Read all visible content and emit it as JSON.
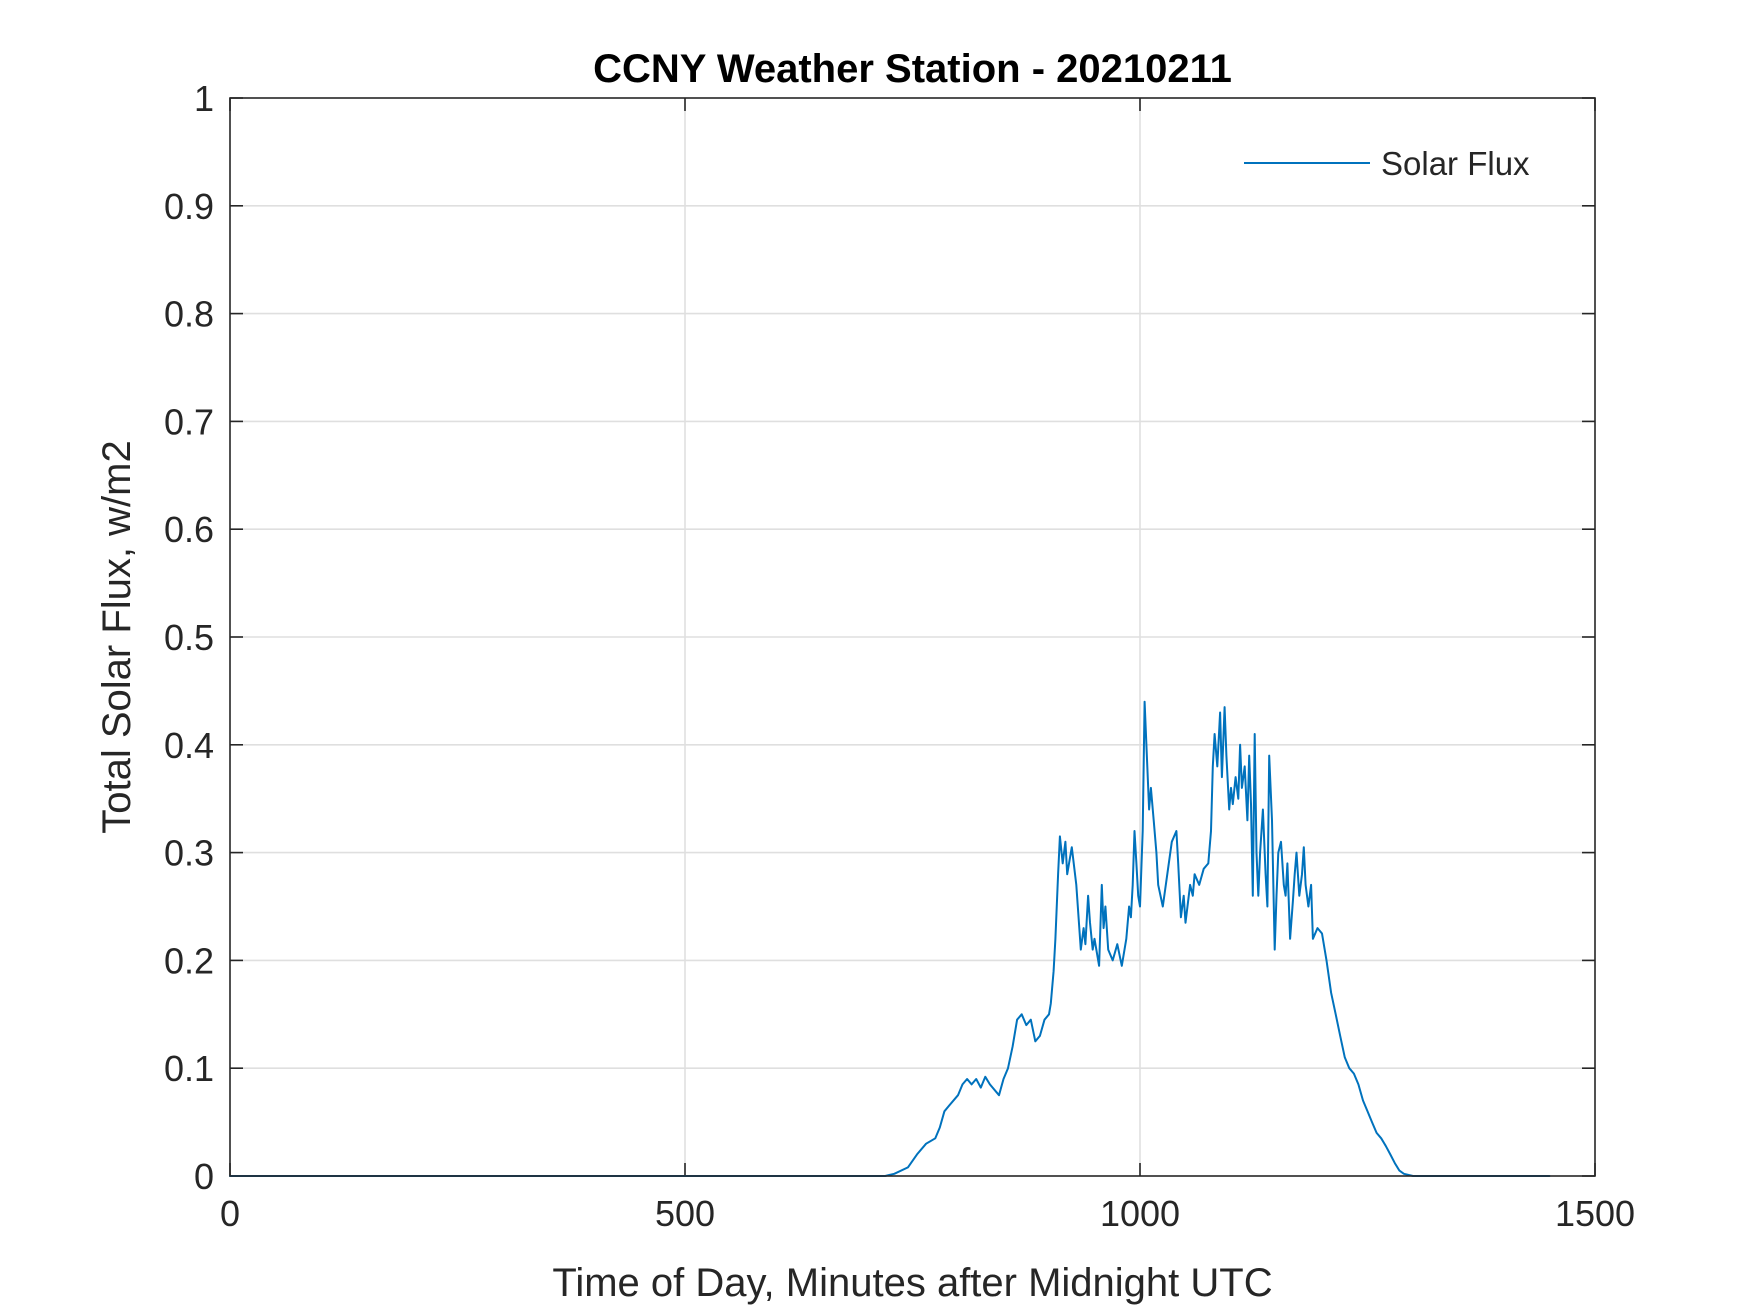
{
  "chart_data": {
    "type": "line",
    "title": "CCNY Weather Station - 20210211",
    "xlabel": "Time of Day, Minutes after Midnight UTC",
    "ylabel": "Total Solar Flux, w/m2",
    "xlim": [
      0,
      1500
    ],
    "ylim": [
      0,
      1
    ],
    "xticks": [
      0,
      500,
      1000,
      1500
    ],
    "xtick_labels": [
      "0",
      "500",
      "1000",
      "1500"
    ],
    "yticks": [
      0,
      0.1,
      0.2,
      0.3,
      0.4,
      0.5,
      0.6,
      0.7,
      0.8,
      0.9,
      1
    ],
    "ytick_labels": [
      "0",
      "0.1",
      "0.2",
      "0.3",
      "0.4",
      "0.5",
      "0.6",
      "0.7",
      "0.8",
      "0.9",
      "1"
    ],
    "grid": true,
    "legend_position": "top-right",
    "series": [
      {
        "name": "Solar Flux",
        "color": "#0072BD",
        "x": [
          0,
          720,
          730,
          745,
          755,
          765,
          775,
          780,
          785,
          790,
          800,
          805,
          810,
          815,
          820,
          825,
          830,
          835,
          845,
          850,
          855,
          860,
          865,
          870,
          875,
          880,
          885,
          890,
          895,
          900,
          902,
          905,
          907,
          910,
          912,
          915,
          918,
          920,
          925,
          930,
          935,
          938,
          940,
          943,
          945,
          948,
          950,
          955,
          958,
          960,
          962,
          965,
          970,
          975,
          980,
          985,
          988,
          990,
          992,
          994,
          996,
          998,
          1000,
          1003,
          1005,
          1008,
          1010,
          1012,
          1015,
          1018,
          1020,
          1025,
          1030,
          1035,
          1040,
          1042,
          1045,
          1048,
          1050,
          1055,
          1058,
          1060,
          1065,
          1070,
          1075,
          1078,
          1080,
          1082,
          1085,
          1088,
          1090,
          1093,
          1095,
          1098,
          1100,
          1102,
          1105,
          1108,
          1110,
          1112,
          1115,
          1118,
          1120,
          1122,
          1124,
          1126,
          1128,
          1130,
          1132,
          1135,
          1138,
          1140,
          1142,
          1145,
          1148,
          1150,
          1152,
          1155,
          1158,
          1160,
          1162,
          1165,
          1168,
          1170,
          1172,
          1175,
          1178,
          1180,
          1182,
          1185,
          1188,
          1190,
          1195,
          1200,
          1205,
          1210,
          1215,
          1220,
          1225,
          1230,
          1235,
          1240,
          1245,
          1250,
          1255,
          1260,
          1265,
          1270,
          1275,
          1280,
          1285,
          1290,
          1300,
          1310,
          1320,
          1330,
          1340,
          1350,
          1360,
          1370,
          1380,
          1450
        ],
        "y": [
          0,
          0,
          0.002,
          0.008,
          0.02,
          0.03,
          0.035,
          0.045,
          0.06,
          0.065,
          0.075,
          0.085,
          0.09,
          0.085,
          0.09,
          0.082,
          0.092,
          0.085,
          0.075,
          0.09,
          0.1,
          0.12,
          0.145,
          0.15,
          0.14,
          0.145,
          0.125,
          0.13,
          0.145,
          0.15,
          0.16,
          0.19,
          0.22,
          0.28,
          0.315,
          0.29,
          0.31,
          0.28,
          0.305,
          0.27,
          0.21,
          0.23,
          0.215,
          0.26,
          0.235,
          0.21,
          0.22,
          0.195,
          0.27,
          0.23,
          0.25,
          0.21,
          0.2,
          0.215,
          0.195,
          0.22,
          0.25,
          0.24,
          0.27,
          0.32,
          0.29,
          0.26,
          0.25,
          0.32,
          0.44,
          0.38,
          0.34,
          0.36,
          0.33,
          0.3,
          0.27,
          0.25,
          0.28,
          0.31,
          0.32,
          0.29,
          0.24,
          0.26,
          0.235,
          0.27,
          0.26,
          0.28,
          0.27,
          0.285,
          0.29,
          0.32,
          0.38,
          0.41,
          0.38,
          0.43,
          0.37,
          0.435,
          0.39,
          0.34,
          0.36,
          0.345,
          0.37,
          0.35,
          0.4,
          0.36,
          0.38,
          0.33,
          0.39,
          0.345,
          0.26,
          0.41,
          0.3,
          0.26,
          0.3,
          0.34,
          0.28,
          0.25,
          0.39,
          0.33,
          0.21,
          0.26,
          0.3,
          0.31,
          0.27,
          0.26,
          0.29,
          0.22,
          0.255,
          0.28,
          0.3,
          0.26,
          0.28,
          0.305,
          0.27,
          0.25,
          0.27,
          0.22,
          0.23,
          0.225,
          0.2,
          0.17,
          0.15,
          0.13,
          0.11,
          0.1,
          0.095,
          0.085,
          0.07,
          0.06,
          0.05,
          0.04,
          0.035,
          0.028,
          0.02,
          0.012,
          0.005,
          0.002,
          0,
          0,
          0,
          0,
          0,
          0,
          0,
          0,
          0,
          0
        ]
      }
    ]
  }
}
